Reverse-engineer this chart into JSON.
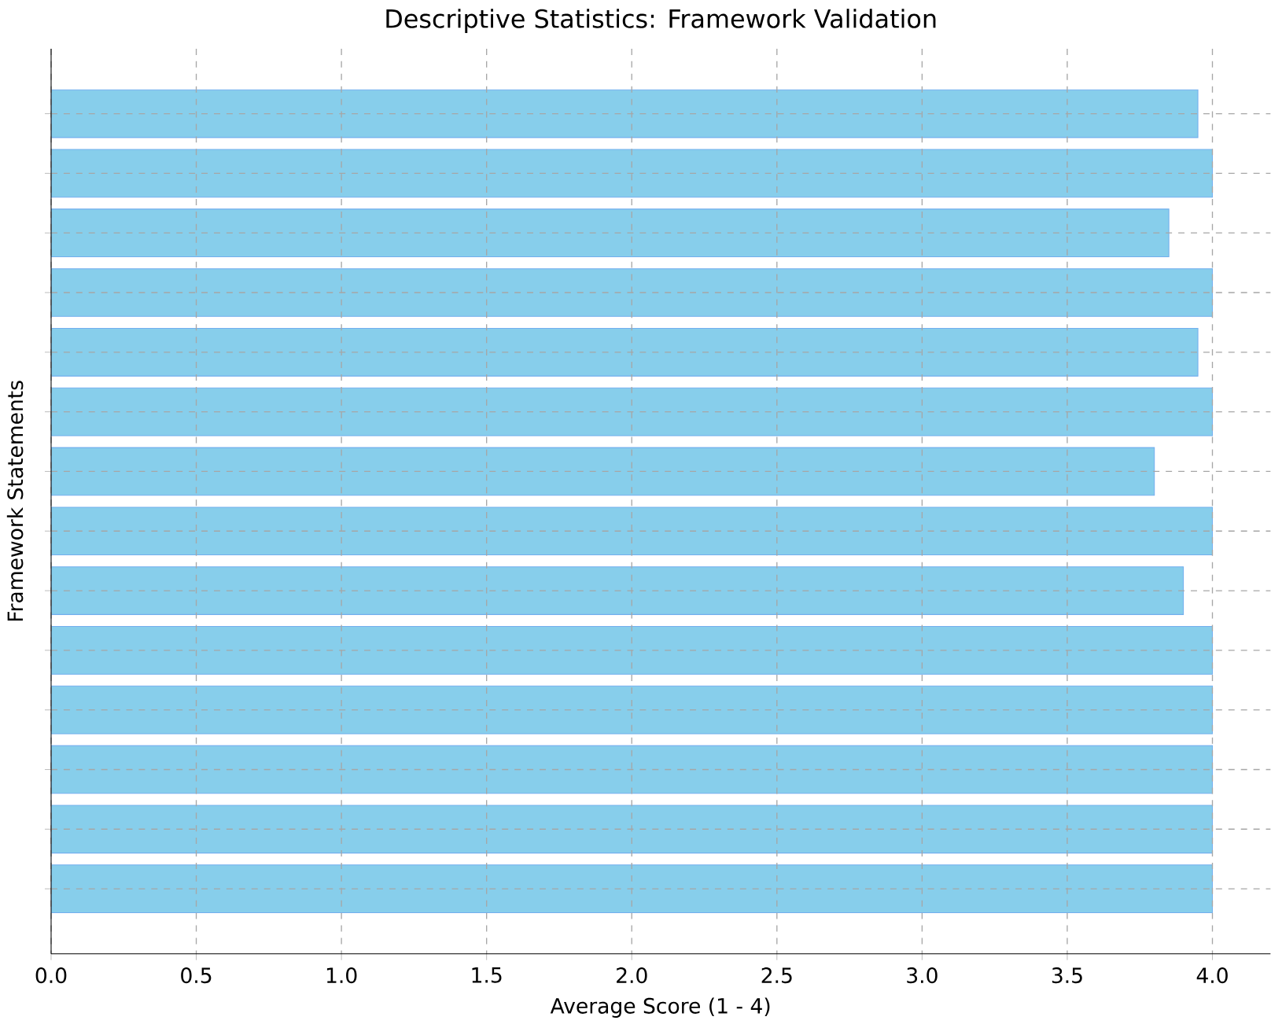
{
  "chart_data": {
    "type": "bar",
    "orientation": "horizontal",
    "title": "Descriptive Statistics: Framework Validation",
    "xlabel": "Average Score (1 - 4)",
    "ylabel": "Framework Statements",
    "categories": [
      null,
      null,
      null,
      null,
      null,
      null,
      null,
      null,
      null,
      null,
      null,
      null,
      null,
      null
    ],
    "values": [
      3.95,
      4.0,
      3.85,
      4.0,
      3.95,
      4.0,
      3.8,
      4.0,
      3.9,
      4.0,
      4.0,
      4.0,
      4.0,
      4.0
    ],
    "color": "#87ceeb",
    "xlim": [
      0,
      4.2
    ],
    "xticks": [
      {
        "value": 0,
        "label": "0.0"
      },
      {
        "value": 0.5,
        "label": "0.5"
      },
      {
        "value": 1,
        "label": "1.0"
      },
      {
        "value": 1.5,
        "label": "1.5"
      },
      {
        "value": 2,
        "label": "2.0"
      },
      {
        "value": 2.5,
        "label": "2.5"
      },
      {
        "value": 3,
        "label": "3.0"
      },
      {
        "value": 3.5,
        "label": "3.5"
      },
      {
        "value": 4,
        "label": "4.0"
      }
    ],
    "grid": true,
    "tick_labels": "x"
  }
}
